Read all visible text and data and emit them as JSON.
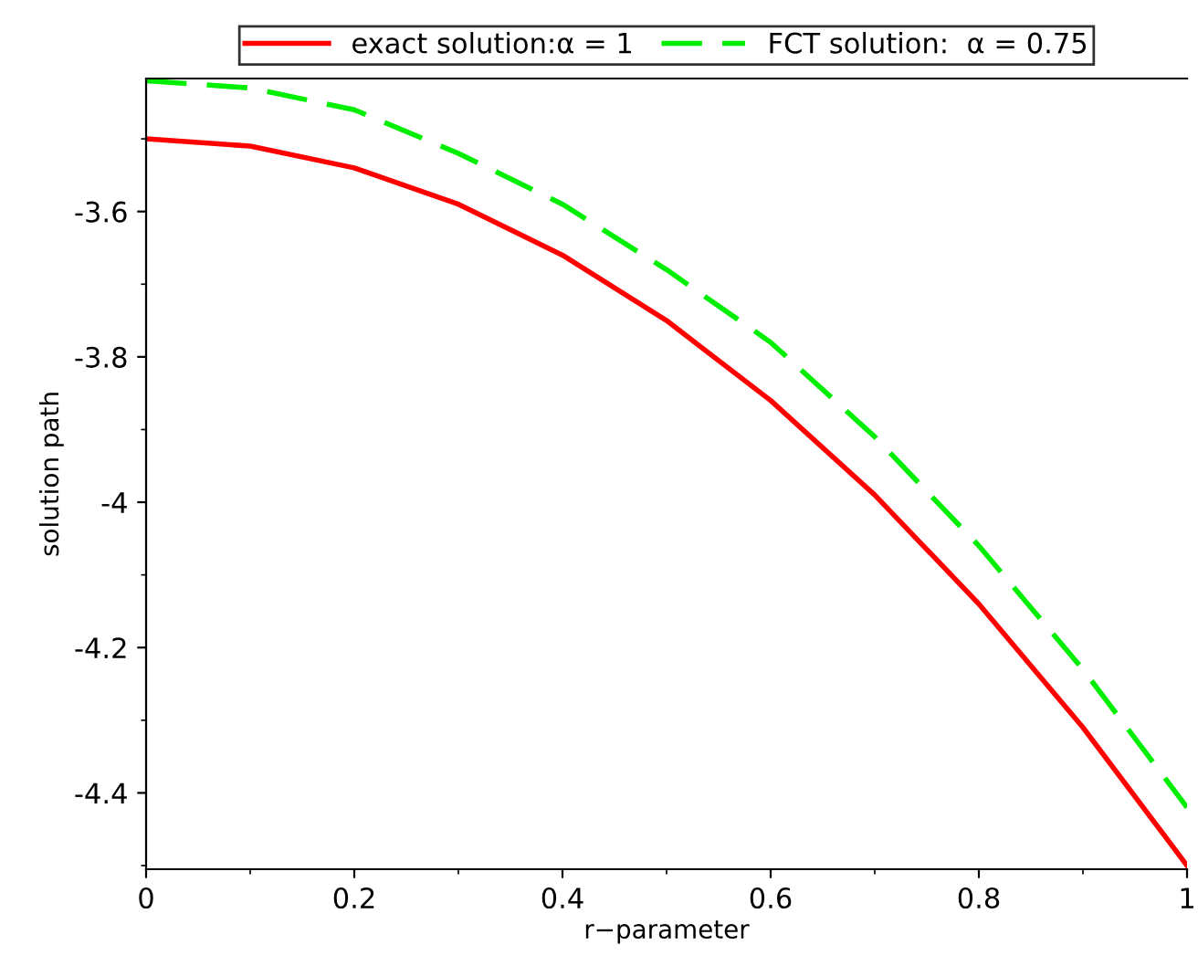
{
  "chart_data": {
    "type": "line",
    "xlabel": "r−parameter",
    "ylabel": "solution path",
    "x": [
      0,
      0.1,
      0.2,
      0.3,
      0.4,
      0.5,
      0.6,
      0.7,
      0.8,
      0.9,
      1
    ],
    "series": [
      {
        "name": "exact solution:α = 1",
        "color": "#ff0000",
        "line_style": "solid",
        "values": [
          -3.5,
          -3.51,
          -3.54,
          -3.59,
          -3.66,
          -3.75,
          -3.86,
          -3.99,
          -4.14,
          -4.31,
          -4.5
        ]
      },
      {
        "name": "FCT solution:  α = 0.75",
        "color": "#00ee00",
        "line_style": "dashed",
        "values": [
          -3.42,
          -3.43,
          -3.46,
          -3.52,
          -3.59,
          -3.68,
          -3.78,
          -3.91,
          -4.06,
          -4.23,
          -4.42
        ]
      }
    ],
    "xlim": [
      0,
      1
    ],
    "xticks": [
      0,
      0.2,
      0.4,
      0.6,
      0.8,
      1
    ],
    "ylim": [
      -4.505,
      -3.417
    ],
    "yticks": [
      {
        "value": -3.6,
        "label": "-3.6"
      },
      {
        "value": -3.8,
        "label": "-3.8"
      },
      {
        "value": -4,
        "label": "-4"
      },
      {
        "value": -4.2,
        "label": "-4.2"
      },
      {
        "value": -4.4,
        "label": "-4.4"
      }
    ],
    "grid": false,
    "legend": "top",
    "marker": "none"
  }
}
